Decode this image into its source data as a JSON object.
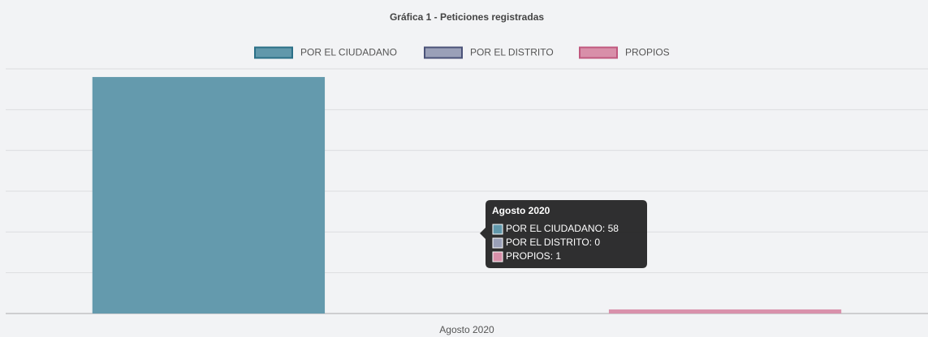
{
  "chart_data": {
    "type": "bar",
    "title": "Gráfica 1 - Peticiones registradas",
    "categories": [
      "Agosto 2020"
    ],
    "series": [
      {
        "name": "POR EL CIUDADANO",
        "color": "#6198ab",
        "border": "#2a6f87",
        "values": [
          58
        ]
      },
      {
        "name": "POR EL DISTRITO",
        "color": "#9aa0b8",
        "border": "#4a5278",
        "values": [
          0
        ]
      },
      {
        "name": "PROPIOS",
        "color": "#d88fa9",
        "border": "#c0587e",
        "values": [
          1
        ]
      }
    ],
    "ylim": [
      0,
      60
    ],
    "yticks": [
      0,
      10,
      20,
      30,
      40,
      50,
      60
    ],
    "grid": true,
    "legend": "top"
  }
}
